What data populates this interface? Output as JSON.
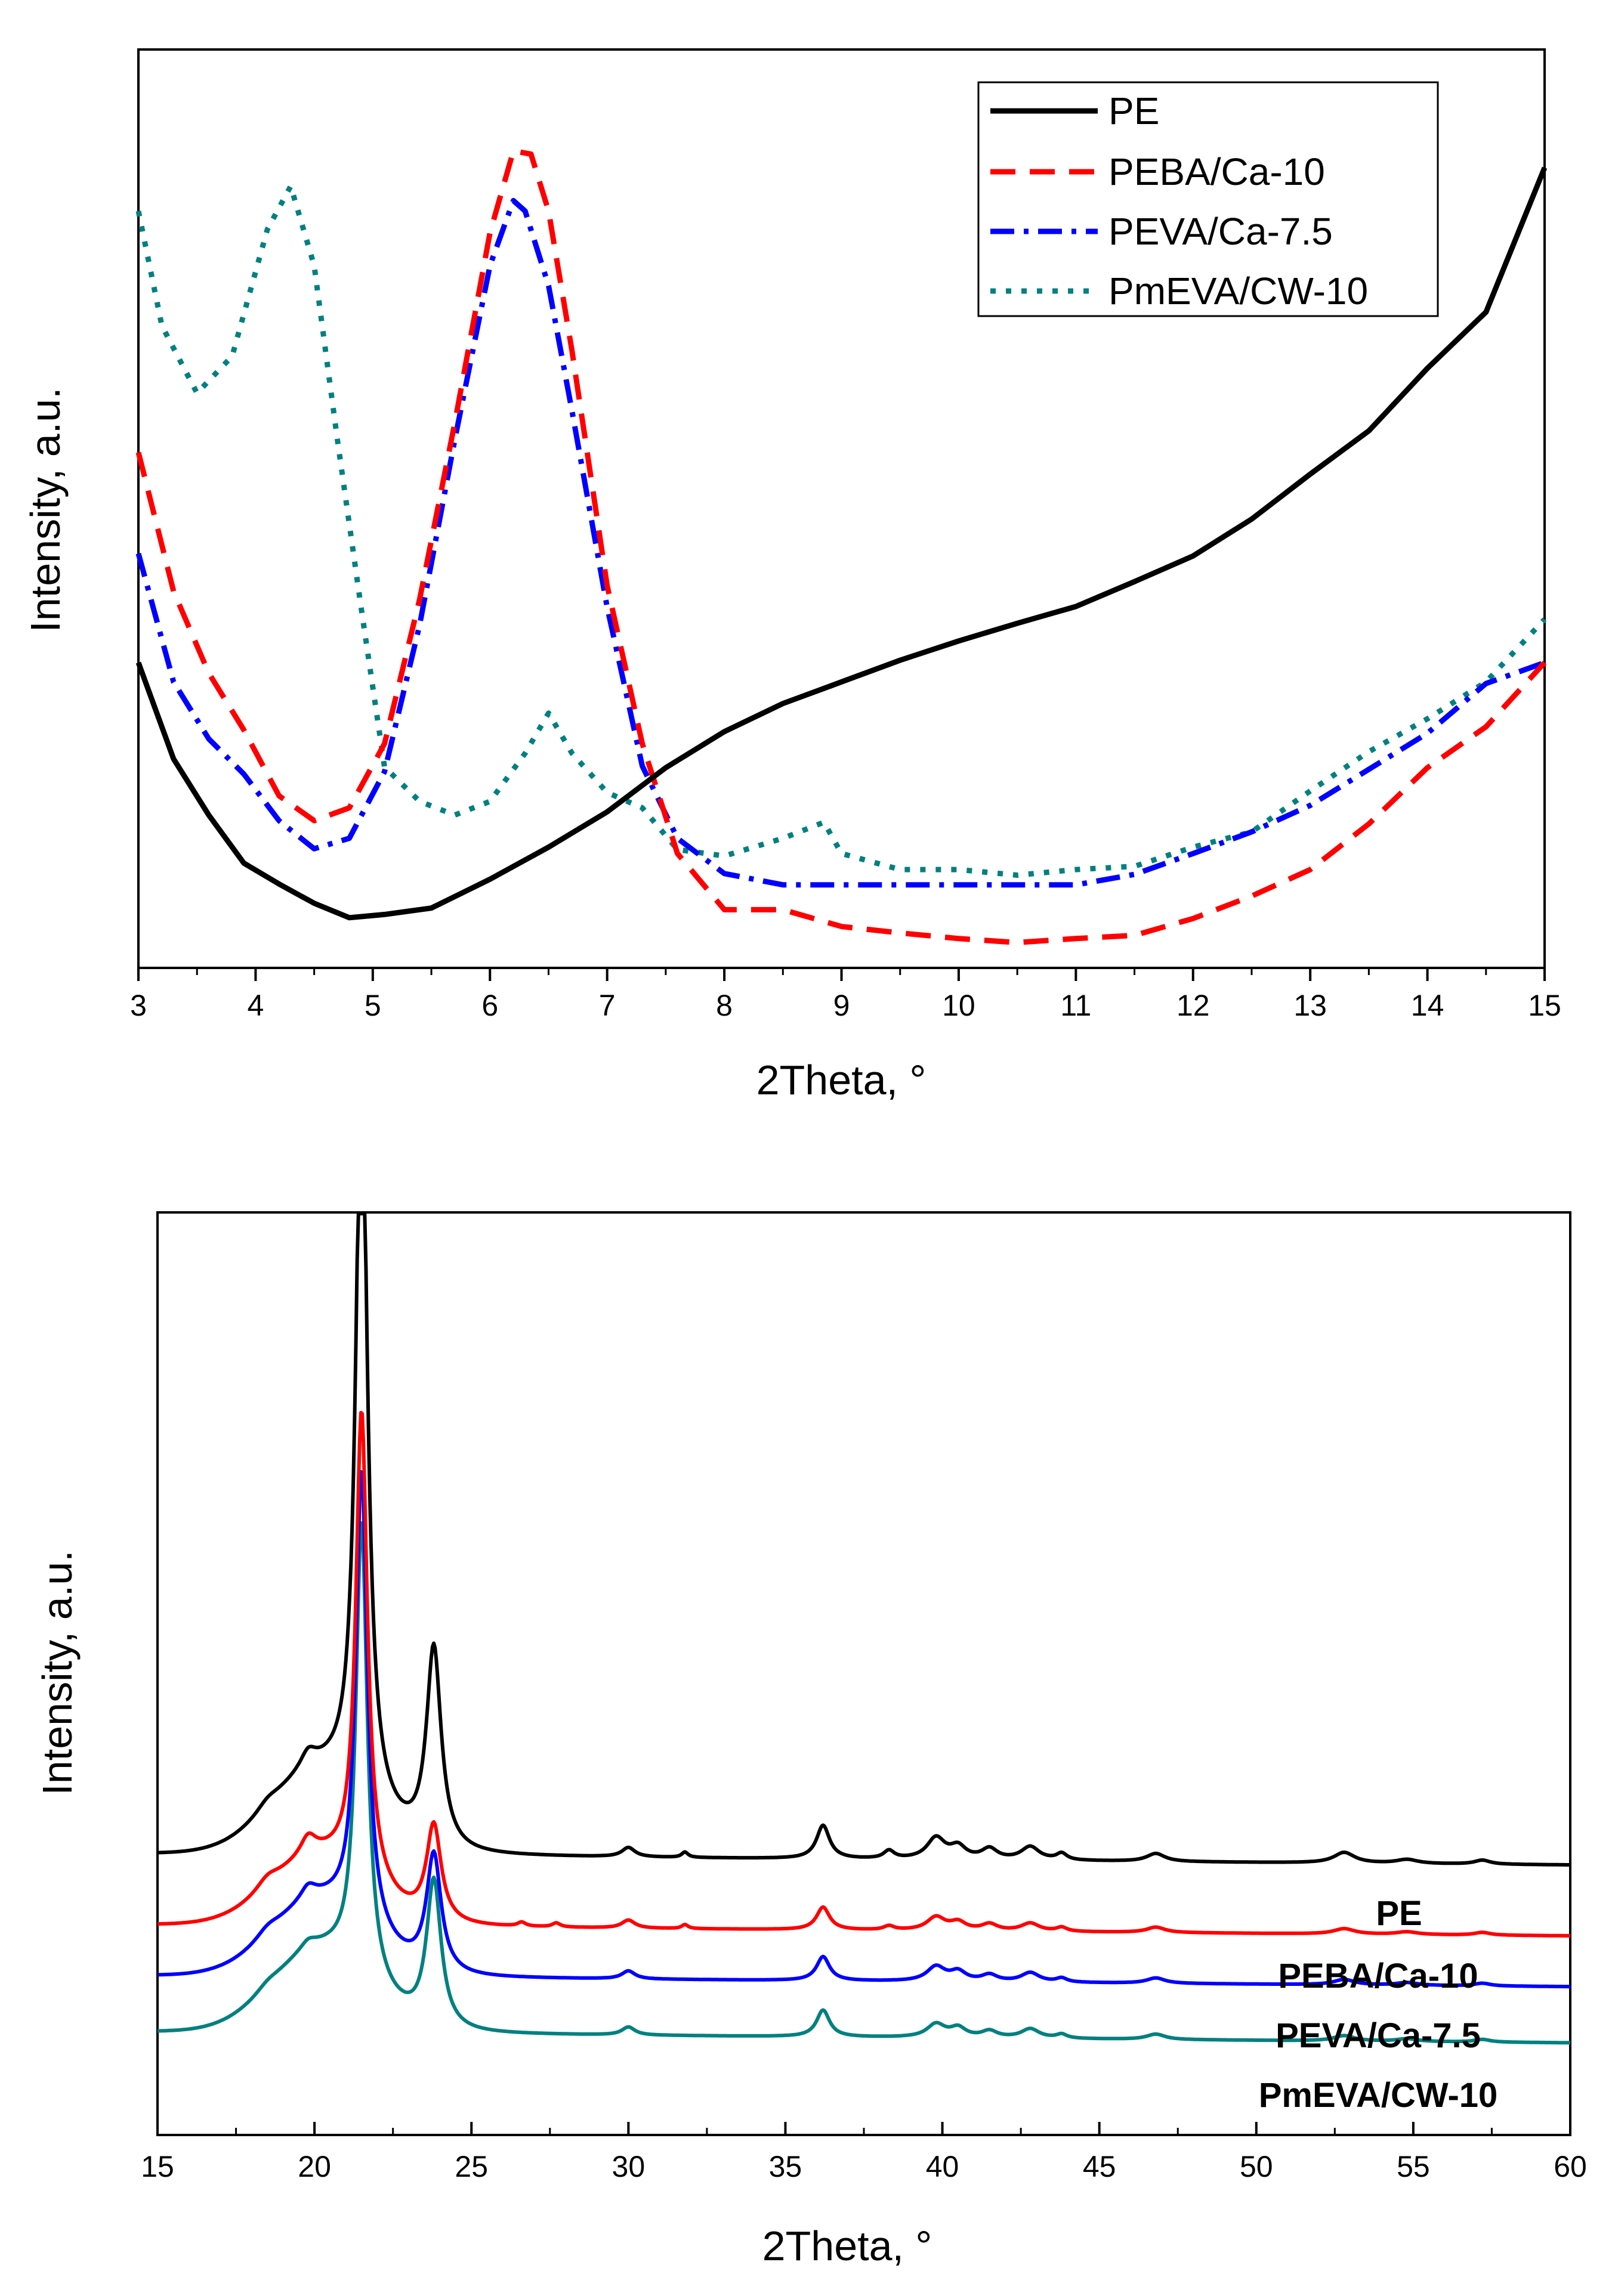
{
  "chart_data": [
    {
      "type": "line",
      "xlabel": "2Theta, °",
      "ylabel": "Intensity, a.u.",
      "xlim": [
        3,
        15
      ],
      "ylim": [
        0,
        100
      ],
      "xticks": [
        "3",
        "4",
        "5",
        "6",
        "7",
        "8",
        "9",
        "10",
        "11",
        "12",
        "13",
        "14",
        "15"
      ],
      "legend_position": "top-right",
      "series": [
        {
          "name": "PE",
          "color": "#000000",
          "style": "solid",
          "x": [
            3,
            3.3,
            3.6,
            3.9,
            4.2,
            4.5,
            4.8,
            5.1,
            5.5,
            6,
            6.5,
            7,
            7.5,
            8,
            8.5,
            9,
            9.5,
            10,
            10.5,
            11,
            11.5,
            12,
            12.5,
            13,
            13.5,
            14,
            14.5,
            15
          ],
          "y": [
            36.2,
            24.2,
            17.2,
            11.2,
            8.6,
            6.2,
            4.4,
            4.8,
            5.6,
            9.2,
            13.2,
            17.6,
            23.1,
            27.6,
            31.1,
            33.8,
            36.5,
            38.9,
            41.1,
            43.2,
            46.3,
            49.5,
            54.1,
            59.7,
            65.1,
            72.9,
            79.9,
            97.9
          ]
        },
        {
          "name": "PEBA/Ca-10",
          "color": "#ff0000",
          "style": "dashed",
          "x": [
            3,
            3.3,
            3.6,
            3.9,
            4.2,
            4.5,
            4.8,
            5.1,
            5.4,
            5.7,
            6,
            6.2,
            6.35,
            6.5,
            6.7,
            7,
            7.3,
            7.6,
            8,
            8.5,
            9,
            9.5,
            10,
            10.5,
            11,
            11.5,
            12,
            12.5,
            13,
            13.5,
            14,
            14.5,
            15
          ],
          "y": [
            62.4,
            45.1,
            34.9,
            27.8,
            19.6,
            16.5,
            18.1,
            26.1,
            44.1,
            66.1,
            89.8,
            100.0,
            99.6,
            92.5,
            75.1,
            45.8,
            26.1,
            12.4,
            5.4,
            5.4,
            3.3,
            2.5,
            1.8,
            1.3,
            1.8,
            2.2,
            4.3,
            7.1,
            10.4,
            16.1,
            23.1,
            28.2,
            36.2
          ]
        },
        {
          "name": "PEVA/Ca-7.5",
          "color": "#0000ff",
          "style": "dash-dot",
          "x": [
            3,
            3.3,
            3.6,
            3.9,
            4.2,
            4.5,
            4.8,
            5.1,
            5.4,
            5.7,
            6,
            6.2,
            6.3,
            6.5,
            6.7,
            7,
            7.3,
            7.6,
            8,
            8.5,
            9,
            9.5,
            10,
            10.5,
            11,
            11.5,
            12,
            12.5,
            13,
            13.5,
            14,
            14.5,
            15
          ],
          "y": [
            49.8,
            33.8,
            26.7,
            22.3,
            16.5,
            13.0,
            14.3,
            22.6,
            40.9,
            64.0,
            85.7,
            93.8,
            92.5,
            83.2,
            67.6,
            43.1,
            23.3,
            14.3,
            9.9,
            8.5,
            8.5,
            8.5,
            8.5,
            8.5,
            8.5,
            9.8,
            12.4,
            15.1,
            18.4,
            22.9,
            27.4,
            33.6,
            36.2
          ]
        },
        {
          "name": "PmEVA/CW-10",
          "color": "#008080",
          "style": "dotted",
          "x": [
            3,
            3.2,
            3.5,
            3.8,
            4.1,
            4.3,
            4.5,
            4.7,
            4.9,
            5.1,
            5.4,
            5.7,
            6,
            6.3,
            6.5,
            6.7,
            7,
            7.3,
            7.6,
            8,
            8.5,
            8.85,
            9,
            9.5,
            10,
            10.5,
            11,
            11.5,
            12,
            12.5,
            13,
            13.5,
            14,
            14.5,
            15
          ],
          "y": [
            92.5,
            78.2,
            69.8,
            74.4,
            90.2,
            95.6,
            85.7,
            63.8,
            43.1,
            23.2,
            18.9,
            17.2,
            18.9,
            24.9,
            29.9,
            24.9,
            20.0,
            18.1,
            12.9,
            12.1,
            14.3,
            16.3,
            12.4,
            10.4,
            10.4,
            9.7,
            10.4,
            10.8,
            13.2,
            15.1,
            20.2,
            25.1,
            29.2,
            33.8,
            41.6
          ]
        }
      ]
    },
    {
      "type": "line",
      "xlabel": "2Theta, °",
      "ylabel": "Intensity, a.u.",
      "xlim": [
        15,
        60
      ],
      "ylim": [
        -60,
        630
      ],
      "xticks": [
        "15",
        "20",
        "25",
        "30",
        "35",
        "40",
        "45",
        "50",
        "55",
        "60"
      ],
      "legend_position": "right, labels beside curves",
      "series": [
        {
          "name": "PE",
          "label": "PE",
          "color": "#000000",
          "baseline": 150
        },
        {
          "name": "PEBA/Ca-10",
          "label": "PEBA/Ca-10",
          "color": "#ff0000",
          "baseline": 97
        },
        {
          "name": "PEVA/Ca-7.5",
          "label": "PEVA/Ca-7.5",
          "color": "#0000ff",
          "baseline": 59
        },
        {
          "name": "PmEVA/CW-10",
          "label": "PmEVA/CW-10",
          "color": "#008080",
          "baseline": 17
        }
      ],
      "peaks_2theta": [
        18.5,
        19.8,
        21.5,
        23.8,
        26.6,
        27.7,
        30.0,
        31.8,
        36.2,
        38.3,
        39.8,
        40.5,
        41.5,
        42.8,
        43.8,
        46.8,
        52.8,
        54.8,
        57.2
      ],
      "peak_heights_PE": [
        6,
        12,
        560,
        150,
        0,
        0,
        7,
        4,
        25,
        6,
        16,
        9,
        8,
        10,
        5,
        6,
        8,
        3,
        3
      ],
      "peak_heights_PEBA_Ca-10": [
        8,
        14,
        350,
        72,
        3,
        3,
        6,
        3,
        17,
        3,
        10,
        6,
        5,
        6,
        3,
        4,
        4,
        2,
        2
      ],
      "peak_heights_PEVA_Ca-7.5": [
        6,
        10,
        340,
        88,
        0,
        0,
        6,
        0,
        18,
        0,
        11,
        7,
        5,
        7,
        3,
        4,
        4,
        2,
        2
      ],
      "peak_heights_PmEVA_CW-10": [
        4,
        6,
        340,
        110,
        0,
        0,
        6,
        0,
        20,
        0,
        10,
        7,
        5,
        7,
        3,
        4,
        4,
        2,
        2
      ]
    }
  ]
}
